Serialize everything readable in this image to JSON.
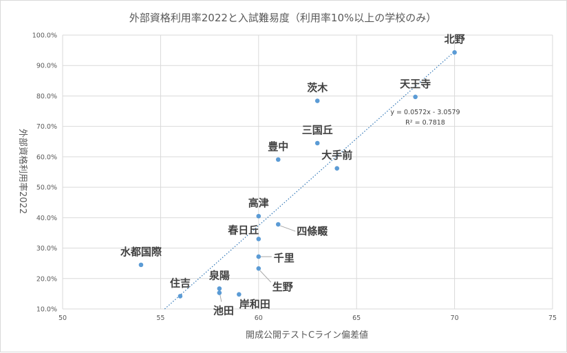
{
  "chart_data": {
    "type": "scatter",
    "title": "外部資格利用率2022と入試難易度（利用率10%以上の学校のみ）",
    "xlabel": "開成公開テストCライン偏差値",
    "ylabel": "外部資格利用率2022",
    "xlim": [
      50,
      75
    ],
    "ylim": [
      0.1,
      1.0
    ],
    "x_ticks": [
      {
        "value": 50,
        "label": "50"
      },
      {
        "value": 55,
        "label": "55"
      },
      {
        "value": 60,
        "label": "60"
      },
      {
        "value": 65,
        "label": "65"
      },
      {
        "value": 70,
        "label": "70"
      },
      {
        "value": 75,
        "label": "75"
      }
    ],
    "y_ticks": [
      {
        "value": 0.1,
        "label": "10.0%"
      },
      {
        "value": 0.2,
        "label": "20.0%"
      },
      {
        "value": 0.3,
        "label": "30.0%"
      },
      {
        "value": 0.4,
        "label": "40.0%"
      },
      {
        "value": 0.5,
        "label": "50.0%"
      },
      {
        "value": 0.6,
        "label": "60.0%"
      },
      {
        "value": 0.7,
        "label": "70.0%"
      },
      {
        "value": 0.8,
        "label": "80.0%"
      },
      {
        "value": 0.9,
        "label": "90.0%"
      },
      {
        "value": 1.0,
        "label": "100.0%"
      }
    ],
    "grid": true,
    "legend": "none",
    "marker_color": "#5b9bd5",
    "trendline_color": "#2e75b6",
    "points": [
      {
        "label": "北野",
        "x": 70,
        "y": 0.943
      },
      {
        "label": "天王寺",
        "x": 68,
        "y": 0.797
      },
      {
        "label": "茨木",
        "x": 63,
        "y": 0.784
      },
      {
        "label": "三国丘",
        "x": 63,
        "y": 0.645
      },
      {
        "label": "豊中",
        "x": 61,
        "y": 0.591
      },
      {
        "label": "大手前",
        "x": 64,
        "y": 0.562
      },
      {
        "label": "高津",
        "x": 60,
        "y": 0.405
      },
      {
        "label": "四條畷",
        "x": 61,
        "y": 0.378
      },
      {
        "label": "春日丘",
        "x": 60,
        "y": 0.33
      },
      {
        "label": "千里",
        "x": 60,
        "y": 0.272
      },
      {
        "label": "生野",
        "x": 60,
        "y": 0.233
      },
      {
        "label": "水都国際",
        "x": 54,
        "y": 0.245
      },
      {
        "label": "泉陽",
        "x": 58,
        "y": 0.167
      },
      {
        "label": "池田",
        "x": 58,
        "y": 0.153
      },
      {
        "label": "岸和田",
        "x": 59,
        "y": 0.148
      },
      {
        "label": "住吉",
        "x": 56,
        "y": 0.142
      }
    ],
    "trendline": {
      "type": "linear",
      "slope": 0.0572,
      "intercept": -3.0579,
      "equation": "y = 0.0572x - 3.0579",
      "r_squared": "R² = 0.7818"
    }
  }
}
